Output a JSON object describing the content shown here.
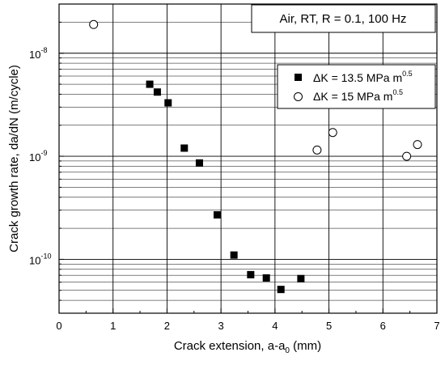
{
  "chart_data": {
    "type": "scatter",
    "annotation": "Air, RT, R = 0.1, 100 Hz",
    "xlabel": {
      "main": "Crack extension, a-a",
      "sub": "0",
      "tail": " (mm)"
    },
    "ylabel": "Crack growth rate, da/dN (m/cycle)",
    "xlim": [
      0,
      7
    ],
    "ylim": [
      3e-11,
      3e-08
    ],
    "yscale": "log",
    "grid": true,
    "legend_position": "top-right",
    "x_ticks": [
      {
        "value": 0,
        "label": "0"
      },
      {
        "value": 1,
        "label": "1"
      },
      {
        "value": 2,
        "label": "2"
      },
      {
        "value": 3,
        "label": "3"
      },
      {
        "value": 4,
        "label": "4"
      },
      {
        "value": 5,
        "label": "5"
      },
      {
        "value": 6,
        "label": "6"
      },
      {
        "value": 7,
        "label": "7"
      }
    ],
    "y_ticks": [
      {
        "value": 1e-10,
        "mantissa": "10",
        "exponent": "-10"
      },
      {
        "value": 1e-09,
        "mantissa": "10",
        "exponent": "-9"
      },
      {
        "value": 1e-08,
        "mantissa": "10",
        "exponent": "-8"
      }
    ],
    "series": [
      {
        "name": {
          "main": "ΔK = 13.5 MPa m",
          "sup": "0.5"
        },
        "marker": "filled-square",
        "color": "#000000",
        "points": [
          {
            "x": 1.68,
            "y": 5e-09
          },
          {
            "x": 1.82,
            "y": 4.2e-09
          },
          {
            "x": 2.02,
            "y": 3.3e-09
          },
          {
            "x": 2.32,
            "y": 1.2e-09
          },
          {
            "x": 2.6,
            "y": 8.6e-10
          },
          {
            "x": 2.93,
            "y": 2.7e-10
          },
          {
            "x": 3.24,
            "y": 1.1e-10
          },
          {
            "x": 3.55,
            "y": 7.1e-11
          },
          {
            "x": 3.84,
            "y": 6.6e-11
          },
          {
            "x": 4.11,
            "y": 5.1e-11
          },
          {
            "x": 4.48,
            "y": 6.5e-11
          }
        ]
      },
      {
        "name": {
          "main": "ΔK = 15 MPa m",
          "sup": "0.5"
        },
        "marker": "open-circle",
        "color": "#000000",
        "points": [
          {
            "x": 0.64,
            "y": 1.9e-08
          },
          {
            "x": 4.78,
            "y": 1.15e-09
          },
          {
            "x": 5.07,
            "y": 1.7e-09
          },
          {
            "x": 6.44,
            "y": 1e-09
          },
          {
            "x": 6.64,
            "y": 1.3e-09
          }
        ]
      }
    ]
  }
}
